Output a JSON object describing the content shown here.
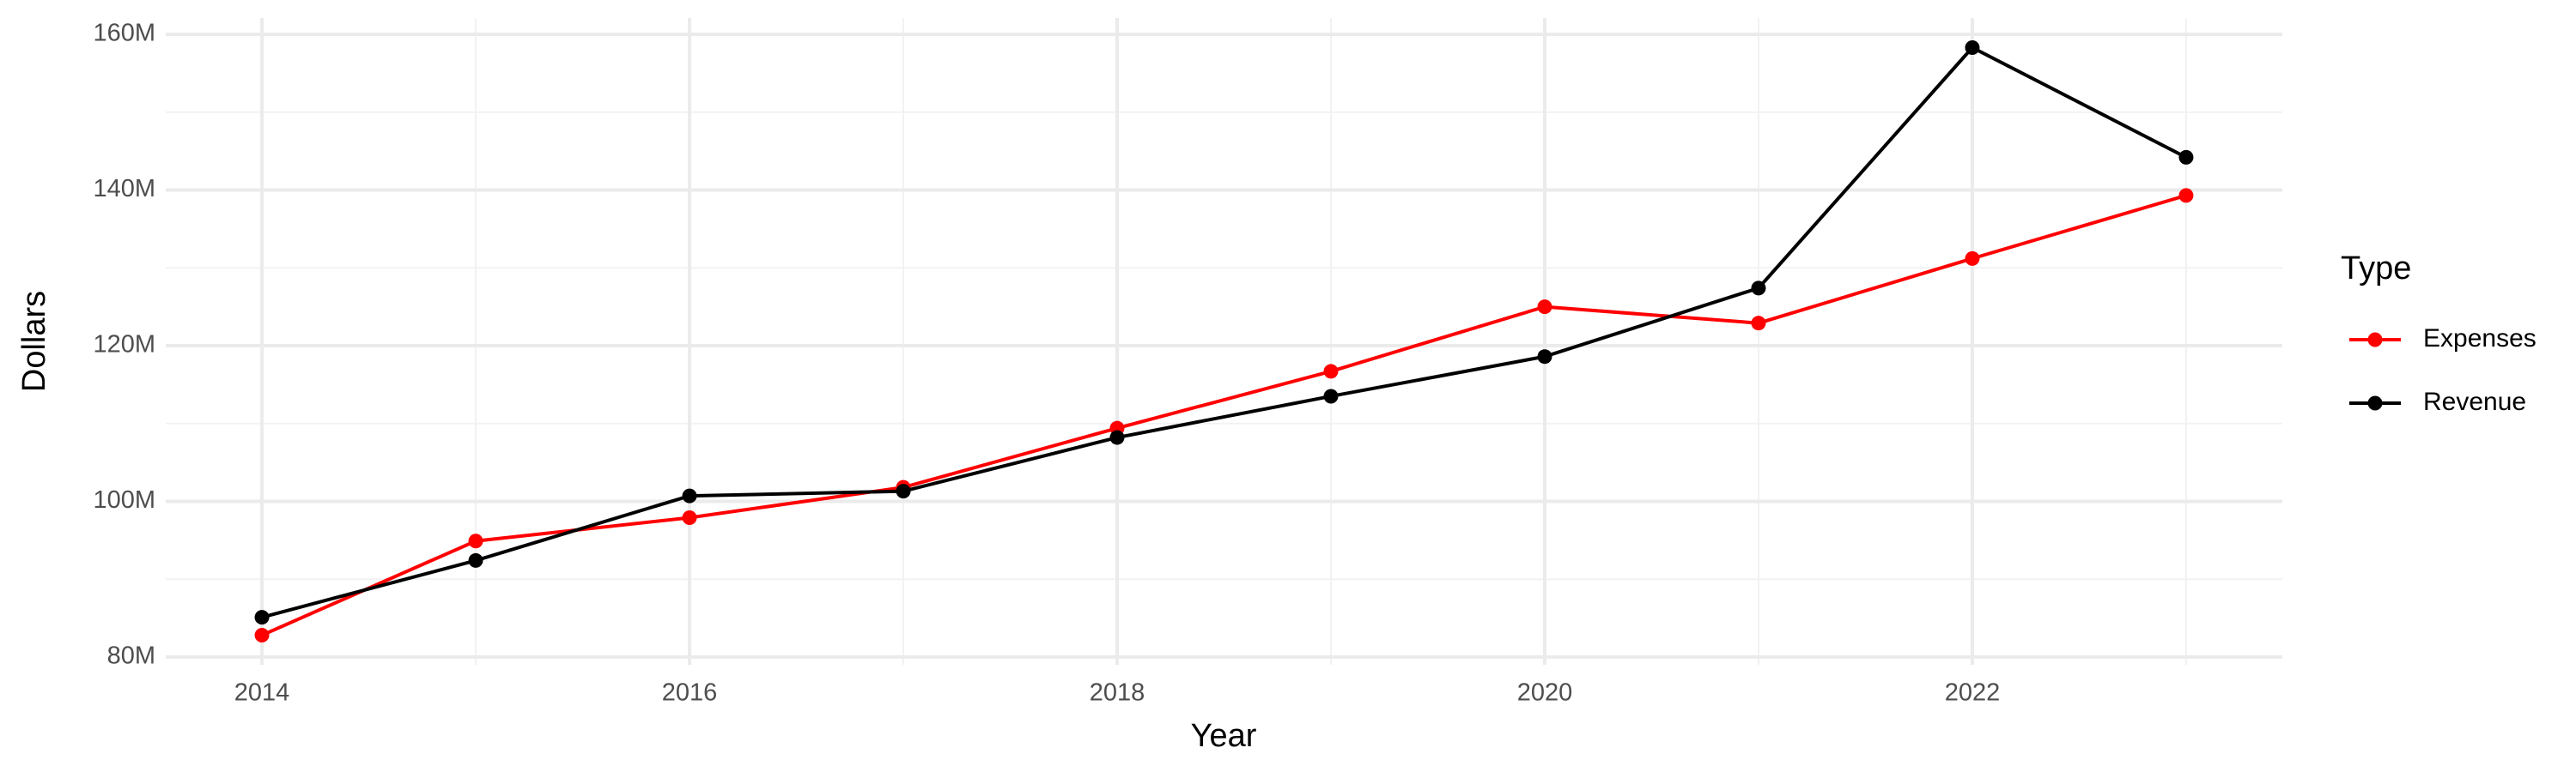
{
  "chart_data": {
    "type": "line",
    "x_label": "Year",
    "y_label": "Dollars",
    "legend_title": "Type",
    "legend_position": "right",
    "grid": true,
    "x": [
      2014,
      2015,
      2016,
      2017,
      2018,
      2019,
      2020,
      2021,
      2022,
      2023
    ],
    "series": [
      {
        "name": "Expenses",
        "color": "#ff0000",
        "values": [
          82800000,
          94900000,
          97900000,
          101800000,
          109400000,
          116700000,
          125000000,
          122900000,
          131200000,
          139300000
        ]
      },
      {
        "name": "Revenue",
        "color": "#000000",
        "values": [
          85100000,
          92400000,
          100700000,
          101300000,
          108200000,
          113500000,
          118600000,
          127400000,
          158300000,
          144200000
        ]
      }
    ],
    "xlim": [
      2013.55,
      2023.45
    ],
    "xticks": [
      2014,
      2016,
      2018,
      2020,
      2022
    ],
    "ylim": [
      79000000,
      162100000
    ],
    "yticks": [
      {
        "value": 80000000,
        "label": "80M"
      },
      {
        "value": 100000000,
        "label": "100M"
      },
      {
        "value": 120000000,
        "label": "120M"
      },
      {
        "value": 140000000,
        "label": "140M"
      },
      {
        "value": 160000000,
        "label": "160M"
      }
    ]
  }
}
